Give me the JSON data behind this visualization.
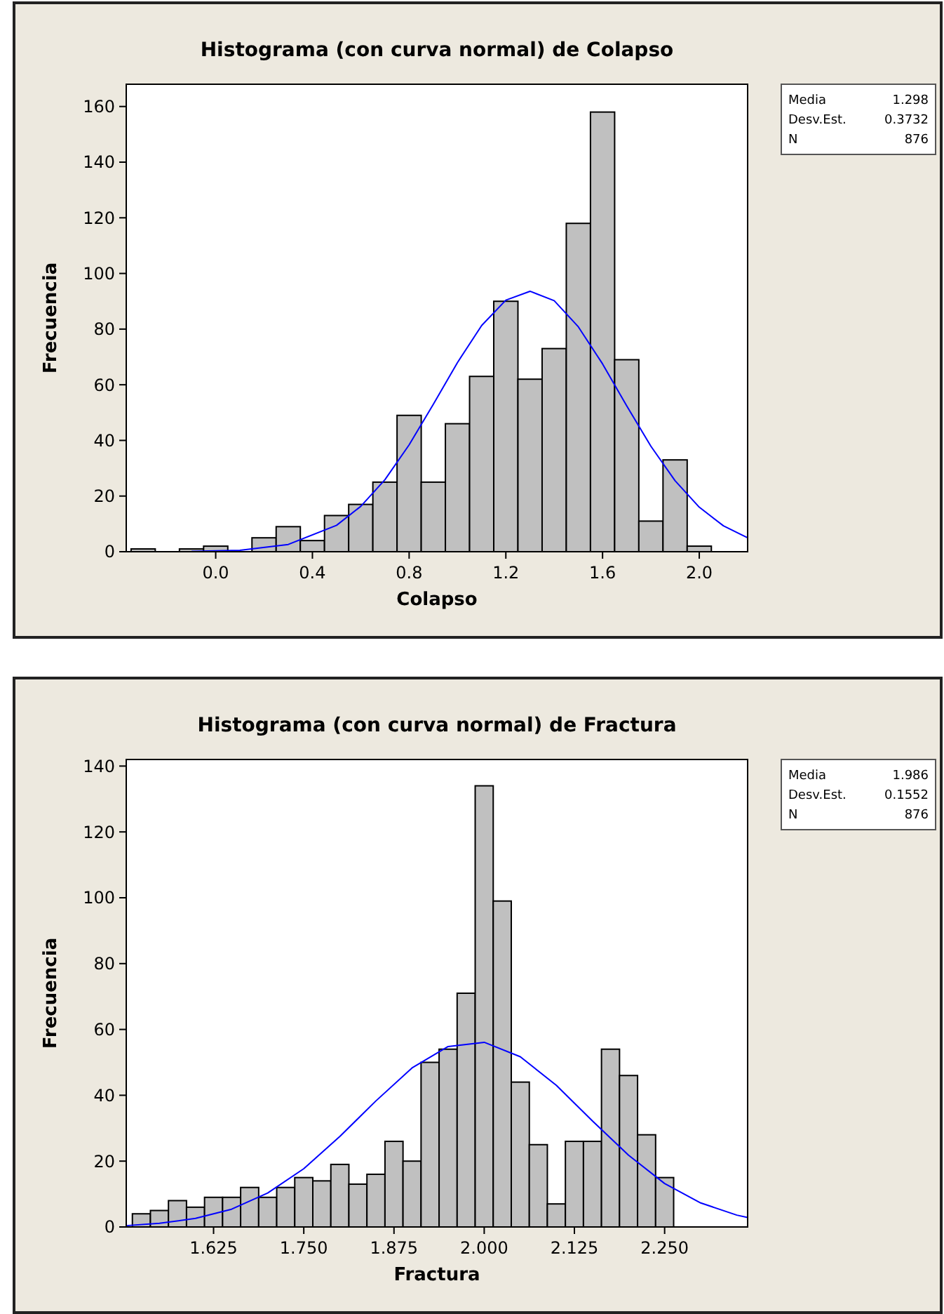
{
  "chart_data": [
    {
      "type": "histogram",
      "title": "Histograma (con curva normal) de Colapso",
      "xlabel": "Colapso",
      "ylabel": "Frecuencia",
      "color": "#c0c0c0",
      "bins": [
        -0.35,
        -0.25,
        -0.15,
        -0.05,
        0.05,
        0.15,
        0.25,
        0.35,
        0.45,
        0.55,
        0.65,
        0.75,
        0.85,
        0.95,
        1.05,
        1.15,
        1.25,
        1.35,
        1.45,
        1.55,
        1.65,
        1.75,
        1.85,
        1.95,
        2.05
      ],
      "values": [
        1,
        0,
        1,
        2,
        0,
        5,
        9,
        4,
        13,
        17,
        25,
        49,
        25,
        46,
        63,
        90,
        62,
        73,
        118,
        158,
        69,
        11,
        33,
        2
      ],
      "series": [
        {
          "type": "line",
          "color": "#0000ff",
          "x": [
            -0.1,
            0.1,
            0.3,
            0.5,
            0.6,
            0.7,
            0.8,
            0.9,
            1.0,
            1.1,
            1.2,
            1.3,
            1.4,
            1.5,
            1.6,
            1.7,
            1.8,
            1.9,
            2.0,
            2.1,
            2.2
          ],
          "values": [
            0.1,
            0.5,
            2.6,
            9.5,
            16.3,
            25.9,
            38.4,
            53,
            68,
            81.3,
            90.4,
            93.6,
            90.2,
            80.8,
            67.5,
            52.4,
            37.9,
            25.5,
            16,
            9.3,
            5
          ]
        }
      ],
      "xlim": [
        -0.37,
        2.2
      ],
      "ylim": [
        0,
        168
      ],
      "xticks": [
        {
          "value": 0,
          "label": "0.0"
        },
        0.4,
        0.8,
        1.2,
        1.6,
        {
          "value": 2,
          "label": "2.0"
        }
      ],
      "yticks": [
        0,
        20,
        40,
        60,
        80,
        100,
        120,
        140,
        160
      ],
      "annotations": [
        "Media 1.298",
        "Desv.Est. 0.3732",
        "N 876"
      ]
    },
    {
      "type": "histogram",
      "title": "Histograma (con curva normal) de Fractura",
      "xlabel": "Fractura",
      "ylabel": "Frecuencia",
      "color": "#c0c0c0",
      "bins": [
        1.5125,
        1.5375,
        1.5625,
        1.5875,
        1.6125,
        1.6375,
        1.6625,
        1.6875,
        1.7125,
        1.7375,
        1.7625,
        1.7875,
        1.8125,
        1.8375,
        1.8625,
        1.8875,
        1.9125,
        1.9375,
        1.9625,
        1.9875,
        2.0125,
        2.0375,
        2.0625,
        2.0875,
        2.1125,
        2.1375,
        2.1625,
        2.1875,
        2.2125,
        2.2375,
        2.2625
      ],
      "values": [
        4,
        5,
        8,
        6,
        9,
        9,
        12,
        9,
        12,
        15,
        14,
        19,
        13,
        16,
        26,
        20,
        50,
        54,
        71,
        134,
        99,
        44,
        25,
        7,
        26,
        26,
        54,
        46,
        28,
        15
      ],
      "series": [
        {
          "type": "line",
          "color": "#0000ff",
          "x": [
            1.504,
            1.55,
            1.6,
            1.65,
            1.7,
            1.75,
            1.8,
            1.85,
            1.9,
            1.95,
            2.0,
            2.05,
            2.1,
            2.15,
            2.2,
            2.25,
            2.3,
            2.35,
            2.365
          ],
          "values": [
            0.4,
            1.1,
            2.6,
            5.4,
            10.3,
            17.7,
            27.5,
            38.3,
            48.3,
            54.8,
            56.1,
            51.7,
            43,
            32.2,
            21.8,
            13.2,
            7.3,
            3.6,
            2.9
          ]
        }
      ],
      "xlim": [
        1.504,
        2.365
      ],
      "ylim": [
        0,
        142
      ],
      "xticks": [
        1.625,
        {
          "value": 1.75,
          "label": "1.750"
        },
        1.875,
        {
          "value": 2,
          "label": "2.000"
        },
        2.125,
        {
          "value": 2.25,
          "label": "2.250"
        }
      ],
      "yticks": [
        0,
        20,
        40,
        60,
        80,
        100,
        120,
        140
      ],
      "annotations": [
        "Media 1.986",
        "Desv.Est. 0.1552",
        "N 876"
      ]
    }
  ]
}
